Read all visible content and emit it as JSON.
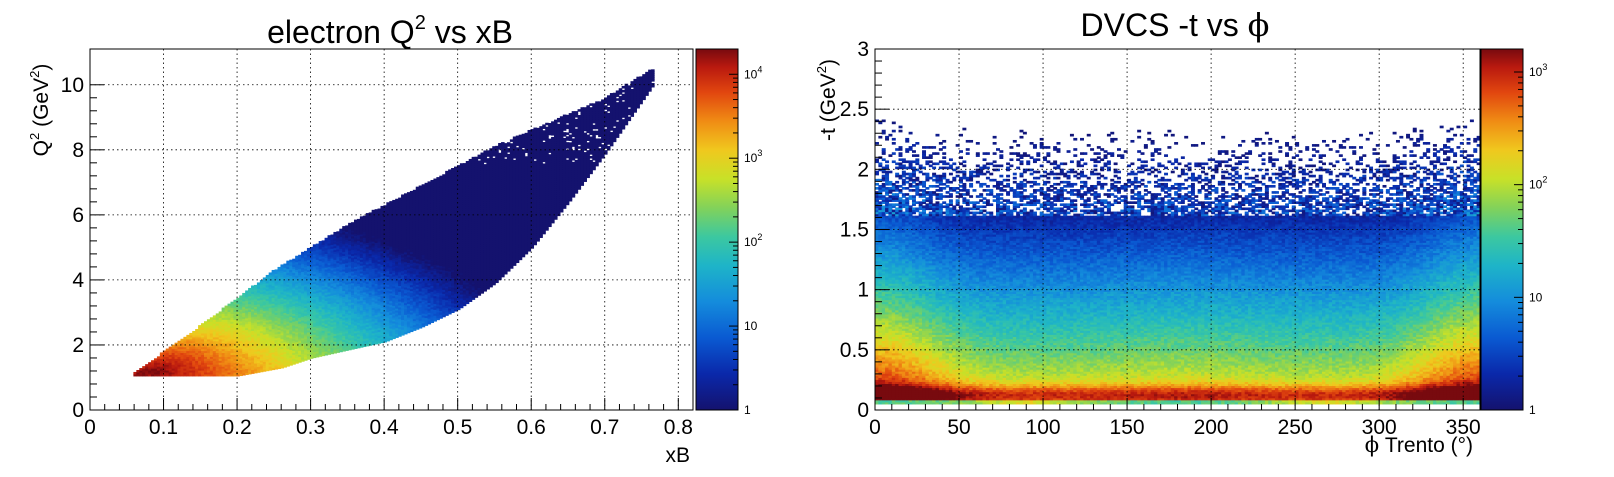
{
  "chart_data": [
    {
      "type": "heatmap",
      "title": "electron Q",
      "title_sup": "2",
      "title_suffix": " vs xB",
      "xlabel": "xB",
      "ylabel_main": "Q",
      "ylabel_sup": "2",
      "ylabel_unit": " (GeV",
      "ylabel_unit_sup": "2",
      "ylabel_close": ")",
      "xlim": [
        0,
        0.82
      ],
      "ylim": [
        0,
        11.1
      ],
      "x_ticks": [
        {
          "v": 0,
          "label": "0"
        },
        {
          "v": 0.1,
          "label": "0.1"
        },
        {
          "v": 0.2,
          "label": "0.2"
        },
        {
          "v": 0.3,
          "label": "0.3"
        },
        {
          "v": 0.4,
          "label": "0.4"
        },
        {
          "v": 0.5,
          "label": "0.5"
        },
        {
          "v": 0.6,
          "label": "0.6"
        },
        {
          "v": 0.7,
          "label": "0.7"
        },
        {
          "v": 0.8,
          "label": "0.8"
        }
      ],
      "y_ticks": [
        {
          "v": 0,
          "label": "0"
        },
        {
          "v": 2,
          "label": "2"
        },
        {
          "v": 4,
          "label": "4"
        },
        {
          "v": 6,
          "label": "6"
        },
        {
          "v": 8,
          "label": "8"
        },
        {
          "v": 10,
          "label": "10"
        }
      ],
      "grid": true,
      "log_z": true,
      "zlim": [
        1,
        20000
      ],
      "z_ticks": [
        {
          "v": 1,
          "label": "1"
        },
        {
          "v": 10,
          "label": "10"
        },
        {
          "v": 100,
          "base": "10",
          "exp": "2"
        },
        {
          "v": 1000,
          "base": "10",
          "exp": "3"
        },
        {
          "v": 10000,
          "base": "10",
          "exp": "4"
        }
      ],
      "region": {
        "x_min": 0.055,
        "x_max": 0.765,
        "lower_edge": [
          [
            0.055,
            1.05
          ],
          [
            0.2,
            1.05
          ],
          [
            0.26,
            1.3
          ],
          [
            0.3,
            1.6
          ],
          [
            0.35,
            1.85
          ],
          [
            0.4,
            2.1
          ],
          [
            0.45,
            2.55
          ],
          [
            0.5,
            3.1
          ],
          [
            0.55,
            3.9
          ],
          [
            0.6,
            5.0
          ],
          [
            0.65,
            6.4
          ],
          [
            0.7,
            7.9
          ],
          [
            0.765,
            10.0
          ]
        ],
        "upper_edge": [
          [
            0.055,
            1.05
          ],
          [
            0.1,
            1.8
          ],
          [
            0.15,
            2.6
          ],
          [
            0.2,
            3.45
          ],
          [
            0.25,
            4.3
          ],
          [
            0.3,
            5.0
          ],
          [
            0.35,
            5.7
          ],
          [
            0.4,
            6.3
          ],
          [
            0.45,
            6.9
          ],
          [
            0.5,
            7.5
          ],
          [
            0.55,
            8.1
          ],
          [
            0.6,
            8.6
          ],
          [
            0.65,
            9.1
          ],
          [
            0.7,
            9.6
          ],
          [
            0.765,
            10.5
          ]
        ],
        "peak": {
          "x": 0.09,
          "y": 1.15,
          "z": 20000
        }
      }
    },
    {
      "type": "heatmap",
      "title": "DVCS -t vs ",
      "title_symbol": "ϕ",
      "xlabel_symbol": "ϕ",
      "xlabel": " Trento (°)",
      "ylabel": "-t (GeV",
      "ylabel_sup": "2",
      "ylabel_close": ")",
      "xlim": [
        0,
        360
      ],
      "ylim": [
        0,
        3
      ],
      "x_ticks": [
        {
          "v": 0,
          "label": "0"
        },
        {
          "v": 50,
          "label": "50"
        },
        {
          "v": 100,
          "label": "100"
        },
        {
          "v": 150,
          "label": "150"
        },
        {
          "v": 200,
          "label": "200"
        },
        {
          "v": 250,
          "label": "250"
        },
        {
          "v": 300,
          "label": "300"
        },
        {
          "v": 350,
          "label": "350"
        }
      ],
      "y_ticks": [
        {
          "v": 0,
          "label": "0"
        },
        {
          "v": 0.5,
          "label": "0.5"
        },
        {
          "v": 1,
          "label": "1"
        },
        {
          "v": 1.5,
          "label": "1.5"
        },
        {
          "v": 2,
          "label": "2"
        },
        {
          "v": 2.5,
          "label": "2.5"
        },
        {
          "v": 3,
          "label": "3"
        }
      ],
      "grid": true,
      "log_z": true,
      "zlim": [
        1,
        1600
      ],
      "z_ticks": [
        {
          "v": 1,
          "label": "1"
        },
        {
          "v": 10,
          "label": "10"
        },
        {
          "v": 100,
          "base": "10",
          "exp": "2"
        },
        {
          "v": 1000,
          "base": "10",
          "exp": "3"
        }
      ],
      "peak": {
        "t": 0.12,
        "z": 1600
      }
    }
  ]
}
